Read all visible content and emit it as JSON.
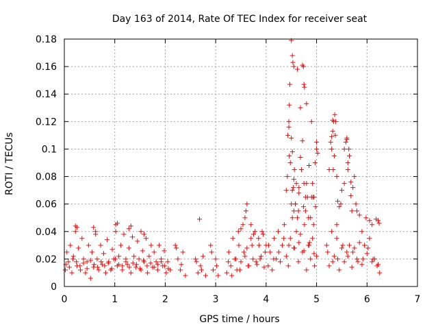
{
  "chart_data": {
    "type": "scatter",
    "title": "Day 163 of 2014, Rate Of TEC Index for receiver seat",
    "xlabel": "GPS time / hours",
    "ylabel": "ROTI / TECUs",
    "xlim": [
      0,
      7
    ],
    "ylim": [
      0,
      0.18
    ],
    "xticks": [
      0,
      1,
      2,
      3,
      4,
      5,
      6,
      7
    ],
    "xtick_labels": [
      "0",
      "1",
      "2",
      "3",
      "4",
      "5",
      "6",
      "7"
    ],
    "yticks": [
      0,
      0.02,
      0.04,
      0.06,
      0.08,
      0.1,
      0.12,
      0.14,
      0.16,
      0.18
    ],
    "ytick_labels": [
      "0",
      "0.02",
      "0.04",
      "0.06",
      "0.08",
      "0.1",
      "0.12",
      "0.14",
      "0.16",
      "0.18"
    ],
    "grid": true,
    "marker": "+",
    "marker_color": "#ff0000",
    "series": [
      {
        "name": "ROTI",
        "x": [
          0.02,
          0.05,
          0.08,
          0.12,
          0.15,
          0.18,
          0.22,
          0.25,
          0.28,
          0.32,
          0.35,
          0.38,
          0.42,
          0.45,
          0.48,
          0.52,
          0.55,
          0.58,
          0.62,
          0.65,
          0.68,
          0.72,
          0.75,
          0.78,
          0.82,
          0.85,
          0.88,
          0.92,
          0.95,
          0.98,
          1.02,
          1.05,
          1.08,
          1.12,
          1.15,
          1.18,
          1.22,
          1.25,
          1.28,
          1.32,
          1.35,
          1.38,
          1.42,
          1.45,
          1.48,
          1.52,
          1.55,
          1.58,
          1.62,
          1.65,
          1.68,
          1.72,
          1.75,
          1.78,
          1.82,
          1.85,
          1.88,
          1.92,
          1.95,
          1.98,
          2.02,
          2.05,
          2.1,
          0.03,
          0.1,
          0.17,
          0.24,
          0.31,
          0.38,
          0.45,
          0.52,
          0.59,
          0.66,
          0.73,
          0.8,
          0.87,
          0.94,
          1.01,
          1.08,
          1.15,
          1.22,
          1.29,
          1.36,
          1.43,
          1.5,
          1.57,
          1.64,
          1.71,
          1.78,
          1.85,
          1.92,
          1.99,
          2.06,
          0.22,
          0.25,
          0.58,
          0.62,
          1.02,
          1.05,
          1.28,
          1.32,
          1.52,
          1.58,
          2.2,
          2.25,
          2.3,
          2.35,
          2.4,
          2.22,
          2.32,
          2.6,
          2.65,
          2.7,
          2.75,
          2.8,
          2.62,
          2.72,
          2.68,
          2.9,
          2.95,
          3.0,
          3.05,
          2.92,
          3.02,
          3.22,
          3.26,
          3.3,
          3.34,
          3.38,
          3.42,
          3.46,
          3.5,
          3.54,
          3.58,
          3.62,
          3.66,
          3.7,
          3.74,
          3.78,
          3.82,
          3.86,
          3.9,
          3.94,
          3.98,
          3.25,
          3.32,
          3.4,
          3.48,
          3.56,
          3.64,
          3.72,
          3.8,
          3.88,
          3.96,
          3.45,
          3.5,
          3.58,
          3.6,
          3.62,
          3.7,
          3.75,
          3.85,
          3.92,
          4.0,
          4.04,
          4.08,
          4.12,
          4.16,
          4.2,
          4.24,
          4.28,
          4.32,
          4.36,
          4.4,
          4.44,
          4.48,
          4.52,
          4.56,
          4.6,
          4.64,
          4.68,
          4.72,
          4.76,
          4.8,
          4.84,
          4.88,
          4.92,
          4.96,
          5.0,
          4.05,
          4.15,
          4.25,
          4.35,
          4.45,
          4.55,
          4.65,
          4.75,
          4.85,
          4.95,
          4.4,
          4.43,
          4.45,
          4.48,
          4.5,
          4.52,
          4.54,
          4.56,
          4.58,
          4.62,
          4.65,
          4.68,
          4.72,
          4.75,
          4.78,
          4.82,
          4.85,
          4.88,
          4.92,
          4.95,
          4.98,
          5.0,
          4.42,
          4.5,
          4.55,
          4.6,
          4.7,
          4.8,
          4.9,
          4.46,
          4.52,
          4.58,
          4.64,
          4.74,
          4.84,
          4.94,
          4.5,
          4.52,
          4.53,
          4.55,
          4.72,
          4.74,
          4.75,
          4.76,
          4.8,
          4.46,
          4.47,
          4.62,
          4.68,
          4.9,
          4.97,
          5.02,
          5.0,
          4.45,
          4.55,
          4.65,
          4.78,
          4.86,
          4.93,
          5.2,
          5.25,
          5.3,
          5.35,
          5.4,
          5.45,
          5.5,
          5.55,
          5.6,
          5.65,
          5.7,
          5.75,
          5.8,
          5.85,
          5.9,
          5.95,
          6.0,
          6.05,
          6.1,
          6.15,
          6.2,
          6.25,
          5.22,
          5.32,
          5.42,
          5.52,
          5.62,
          5.72,
          5.82,
          5.92,
          6.02,
          6.12,
          6.22,
          5.28,
          5.3,
          5.32,
          5.35,
          5.37,
          5.4,
          5.42,
          5.45,
          5.5,
          5.55,
          5.6,
          5.62,
          5.65,
          5.68,
          5.7,
          5.72,
          5.75,
          5.78,
          5.8,
          5.85,
          5.34,
          5.36,
          5.38,
          5.3,
          5.33,
          5.58,
          5.6,
          5.62,
          5.64,
          5.32,
          5.25,
          5.48,
          5.55,
          5.68,
          5.4,
          5.9,
          6.1,
          6.18,
          6.22,
          6.24,
          6.05,
          5.98
        ],
        "y": [
          0.012,
          0.025,
          0.018,
          0.03,
          0.01,
          0.022,
          0.04,
          0.015,
          0.028,
          0.012,
          0.035,
          0.02,
          0.01,
          0.018,
          0.03,
          0.006,
          0.025,
          0.014,
          0.038,
          0.02,
          0.012,
          0.03,
          0.016,
          0.024,
          0.01,
          0.034,
          0.018,
          0.012,
          0.027,
          0.02,
          0.04,
          0.015,
          0.022,
          0.03,
          0.012,
          0.038,
          0.02,
          0.016,
          0.028,
          0.01,
          0.036,
          0.022,
          0.014,
          0.033,
          0.02,
          0.012,
          0.026,
          0.018,
          0.035,
          0.01,
          0.022,
          0.03,
          0.014,
          0.025,
          0.018,
          0.012,
          0.03,
          0.02,
          0.015,
          0.026,
          0.01,
          0.018,
          0.012,
          0.016,
          0.014,
          0.02,
          0.018,
          0.015,
          0.017,
          0.013,
          0.019,
          0.016,
          0.014,
          0.018,
          0.015,
          0.017,
          0.013,
          0.02,
          0.016,
          0.015,
          0.018,
          0.014,
          0.017,
          0.016,
          0.013,
          0.019,
          0.015,
          0.017,
          0.014,
          0.016,
          0.018,
          0.015,
          0.013,
          0.044,
          0.043,
          0.043,
          0.04,
          0.045,
          0.046,
          0.042,
          0.044,
          0.04,
          0.038,
          0.03,
          0.02,
          0.012,
          0.025,
          0.008,
          0.028,
          0.016,
          0.02,
          0.01,
          0.015,
          0.022,
          0.008,
          0.018,
          0.012,
          0.049,
          0.03,
          0.012,
          0.02,
          0.008,
          0.025,
          0.015,
          0.01,
          0.025,
          0.015,
          0.035,
          0.02,
          0.012,
          0.03,
          0.018,
          0.045,
          0.022,
          0.028,
          0.015,
          0.035,
          0.02,
          0.04,
          0.016,
          0.03,
          0.022,
          0.038,
          0.025,
          0.018,
          0.008,
          0.02,
          0.012,
          0.025,
          0.015,
          0.03,
          0.018,
          0.02,
          0.014,
          0.04,
          0.042,
          0.05,
          0.055,
          0.06,
          0.045,
          0.038,
          0.035,
          0.04,
          0.03,
          0.015,
          0.025,
          0.012,
          0.035,
          0.02,
          0.04,
          0.018,
          0.03,
          0.045,
          0.022,
          0.015,
          0.035,
          0.05,
          0.028,
          0.04,
          0.018,
          0.038,
          0.025,
          0.045,
          0.012,
          0.03,
          0.02,
          0.035,
          0.015,
          0.022,
          0.03,
          0.02,
          0.025,
          0.035,
          0.03,
          0.028,
          0.032,
          0.026,
          0.03,
          0.024,
          0.07,
          0.11,
          0.12,
          0.09,
          0.108,
          0.098,
          0.072,
          0.085,
          0.06,
          0.05,
          0.068,
          0.094,
          0.106,
          0.075,
          0.055,
          0.065,
          0.088,
          0.05,
          0.075,
          0.065,
          0.058,
          0.1,
          0.08,
          0.06,
          0.055,
          0.075,
          0.085,
          0.075,
          0.065,
          0.095,
          0.07,
          0.06,
          0.055,
          0.058,
          0.05,
          0.045,
          0.179,
          0.168,
          0.163,
          0.16,
          0.161,
          0.16,
          0.147,
          0.145,
          0.133,
          0.132,
          0.147,
          0.158,
          0.13,
          0.12,
          0.09,
          0.097,
          0.105,
          0.116,
          0.078,
          0.072,
          0.065,
          0.032,
          0.065,
          0.03,
          0.015,
          0.04,
          0.022,
          0.035,
          0.012,
          0.028,
          0.018,
          0.025,
          0.03,
          0.014,
          0.028,
          0.02,
          0.032,
          0.016,
          0.03,
          0.024,
          0.035,
          0.018,
          0.02,
          0.015,
          0.01,
          0.025,
          0.018,
          0.02,
          0.03,
          0.022,
          0.025,
          0.018,
          0.02,
          0.028,
          0.02,
          0.016,
          0.105,
          0.109,
          0.113,
          0.095,
          0.11,
          0.08,
          0.062,
          0.058,
          0.07,
          0.1,
          0.108,
          0.085,
          0.095,
          0.066,
          0.055,
          0.072,
          0.08,
          0.06,
          0.055,
          0.052,
          0.12,
          0.125,
          0.12,
          0.1,
          0.085,
          0.105,
          0.107,
          0.09,
          0.1,
          0.121,
          0.085,
          0.06,
          0.075,
          0.076,
          0.045,
          0.04,
          0.045,
          0.049,
          0.048,
          0.046,
          0.048,
          0.05
        ]
      }
    ]
  }
}
